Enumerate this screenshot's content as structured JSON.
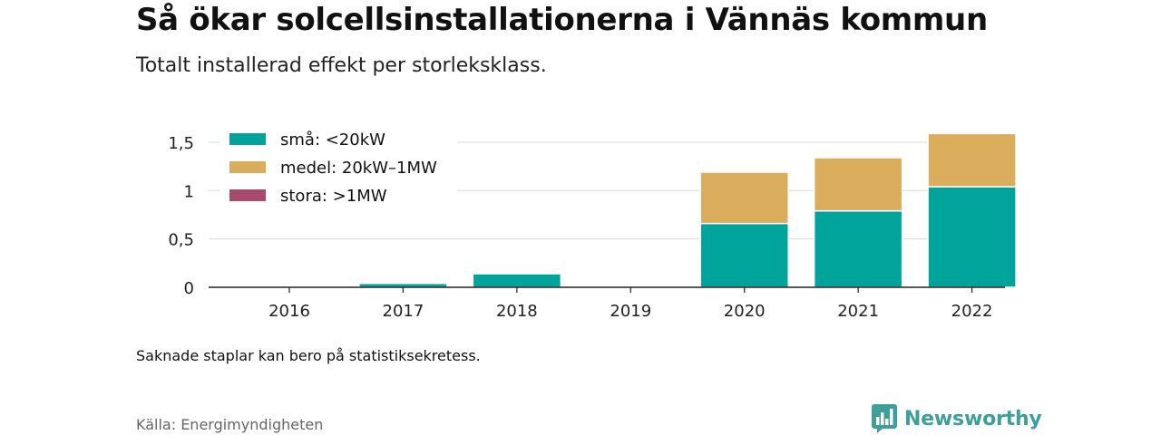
{
  "header": {
    "title": "Så ökar solcellsinstallationerna i Vännäs kommun",
    "subtitle": "Totalt installerad effekt per storleksklass."
  },
  "footer": {
    "note": "Saknade staplar kan bero på statistiksekretess.",
    "source": "Källa: Energimyndigheten",
    "brand": "Newsworthy"
  },
  "colors": {
    "small": "#00a49a",
    "medium": "#d9ad5b",
    "large": "#a84a6d",
    "brand": "#3d9f9a"
  },
  "chart_data": {
    "type": "bar",
    "stacked": true,
    "title": "Så ökar solcellsinstallationerna i Vännäs kommun",
    "subtitle": "Totalt installerad effekt per storleksklass.",
    "categories": [
      "2016",
      "2017",
      "2018",
      "2019",
      "2020",
      "2021",
      "2022"
    ],
    "series": [
      {
        "name": "små: <20kW",
        "color": "#00a49a",
        "values": [
          0,
          0.04,
          0.14,
          0,
          0.66,
          0.79,
          1.04
        ]
      },
      {
        "name": "medel: 20kW–1MW",
        "color": "#d9ad5b",
        "values": [
          0,
          0,
          0,
          0,
          0.53,
          0.55,
          0.55
        ]
      },
      {
        "name": "stora: >1MW",
        "color": "#a84a6d",
        "values": [
          0,
          0,
          0,
          0,
          0,
          0,
          0
        ]
      }
    ],
    "yticks": [
      0,
      0.5,
      1,
      1.5
    ],
    "ytick_labels": [
      "0",
      "0,5",
      "1",
      "1,5"
    ],
    "ylim": [
      0,
      1.6
    ],
    "xlabel": "",
    "ylabel": "",
    "grid": true,
    "legend": "top-left"
  }
}
